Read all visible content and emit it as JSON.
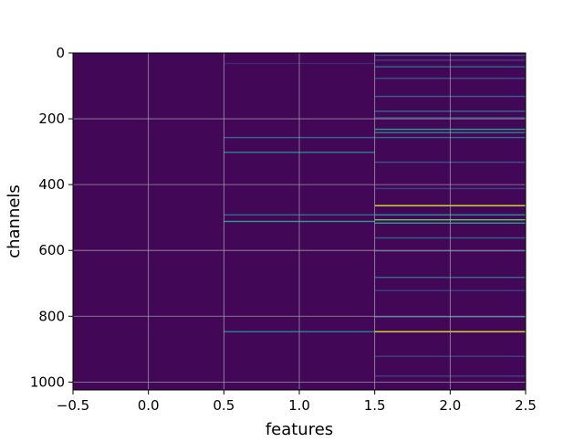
{
  "chart_data": {
    "type": "heatmap",
    "title": "",
    "xlabel": "features",
    "ylabel": "channels",
    "xlim": [
      -0.5,
      2.5
    ],
    "ylim": [
      1024,
      0
    ],
    "y_inverted": true,
    "x_ticks": [
      "−0.5",
      "0.0",
      "0.5",
      "1.0",
      "1.5",
      "2.0",
      "2.5"
    ],
    "x_tick_values": [
      -0.5,
      0.0,
      0.5,
      1.0,
      1.5,
      2.0,
      2.5
    ],
    "y_ticks": [
      "0",
      "200",
      "400",
      "600",
      "800",
      "1000"
    ],
    "y_tick_values": [
      0,
      200,
      400,
      600,
      800,
      1000
    ],
    "grid": true,
    "colormap": "viridis",
    "colormap_stops": [
      "#440154",
      "#3b528b",
      "#21918c",
      "#5ec962",
      "#fde725"
    ],
    "background_value": 0.02,
    "columns": [
      {
        "feature": 0,
        "highlighted_channels": []
      },
      {
        "feature": 1,
        "highlighted_channels": [
          {
            "channel": 30,
            "value": 0.12
          },
          {
            "channel": 255,
            "value": 0.35
          },
          {
            "channel": 300,
            "value": 0.45
          },
          {
            "channel": 490,
            "value": 0.35
          },
          {
            "channel": 510,
            "value": 0.55
          },
          {
            "channel": 845,
            "value": 0.45
          }
        ]
      },
      {
        "feature": 2,
        "highlighted_channels": [
          {
            "channel": 5,
            "value": 0.25
          },
          {
            "channel": 20,
            "value": 0.2
          },
          {
            "channel": 40,
            "value": 0.35
          },
          {
            "channel": 75,
            "value": 0.25
          },
          {
            "channel": 130,
            "value": 0.3
          },
          {
            "channel": 175,
            "value": 0.35
          },
          {
            "channel": 195,
            "value": 0.25
          },
          {
            "channel": 230,
            "value": 0.55
          },
          {
            "channel": 240,
            "value": 0.45
          },
          {
            "channel": 255,
            "value": 0.35
          },
          {
            "channel": 330,
            "value": 0.25
          },
          {
            "channel": 410,
            "value": 0.2
          },
          {
            "channel": 462,
            "value": 0.95
          },
          {
            "channel": 490,
            "value": 0.5
          },
          {
            "channel": 505,
            "value": 0.75
          },
          {
            "channel": 515,
            "value": 0.55
          },
          {
            "channel": 560,
            "value": 0.3
          },
          {
            "channel": 600,
            "value": 0.2
          },
          {
            "channel": 680,
            "value": 0.35
          },
          {
            "channel": 720,
            "value": 0.2
          },
          {
            "channel": 800,
            "value": 0.3
          },
          {
            "channel": 845,
            "value": 0.95
          },
          {
            "channel": 920,
            "value": 0.2
          },
          {
            "channel": 980,
            "value": 0.2
          }
        ]
      }
    ]
  }
}
